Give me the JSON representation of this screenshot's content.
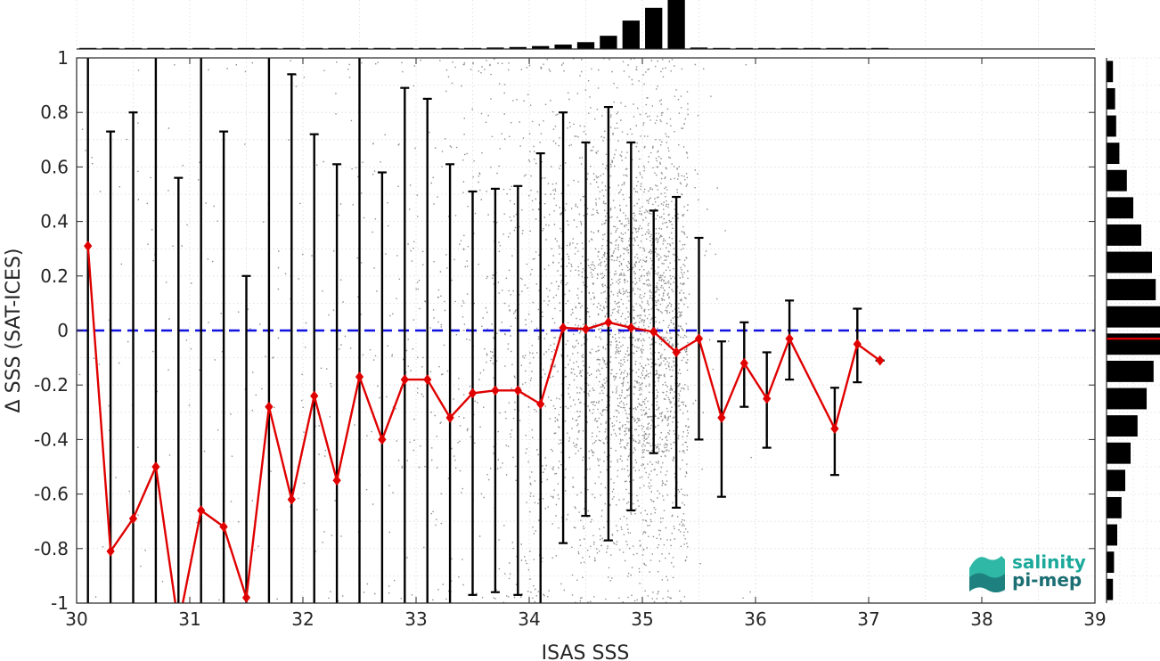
{
  "chart_data": {
    "type": "scatter",
    "xlabel": "ISAS SSS",
    "ylabel": "Δ SSS (SAT-ICES)",
    "xlim": [
      30,
      39
    ],
    "ylim": [
      -1,
      1
    ],
    "xticks": [
      "30",
      "31",
      "32",
      "33",
      "34",
      "35",
      "36",
      "37",
      "38",
      "39"
    ],
    "yticks": [
      "-1",
      "-0.8",
      "-0.6",
      "-0.4",
      "-0.2",
      "0",
      "0.2",
      "0.4",
      "0.6",
      "0.8",
      "1"
    ],
    "grid": true,
    "zero_line": {
      "y": 0,
      "style": "dashed",
      "color": "#1010e0"
    },
    "scatter_color": "#8c8c8c",
    "mean_color": "#e00000",
    "errorbar_color": "#000000",
    "binned_mean": {
      "x": [
        30.1,
        30.3,
        30.5,
        30.7,
        30.9,
        31.1,
        31.3,
        31.5,
        31.7,
        31.9,
        32.1,
        32.3,
        32.5,
        32.7,
        32.9,
        33.1,
        33.3,
        33.5,
        33.7,
        33.9,
        34.1,
        34.3,
        34.5,
        34.7,
        34.9,
        35.1,
        35.3,
        35.5,
        35.7,
        35.9,
        36.1,
        36.3,
        36.7,
        36.9,
        37.1
      ],
      "mean": [
        0.31,
        -0.81,
        -0.69,
        -0.5,
        -1.08,
        -0.66,
        -0.72,
        -0.98,
        -0.28,
        -0.62,
        -0.24,
        -0.55,
        -0.17,
        -0.4,
        -0.18,
        -0.18,
        -0.32,
        -0.23,
        -0.22,
        -0.22,
        -0.27,
        0.01,
        0.005,
        0.03,
        0.01,
        -0.005,
        -0.08,
        -0.03,
        -0.32,
        -0.12,
        -0.25,
        -0.03,
        -0.36,
        -0.05,
        -0.11
      ],
      "upper": [
        1.1,
        0.73,
        0.8,
        1.1,
        0.56,
        1.1,
        0.73,
        0.2,
        1.1,
        0.94,
        0.72,
        0.61,
        1.1,
        0.58,
        0.89,
        0.85,
        0.61,
        0.51,
        0.52,
        0.53,
        0.65,
        0.8,
        0.69,
        0.82,
        0.69,
        0.44,
        0.49,
        0.34,
        -0.04,
        0.03,
        -0.08,
        0.11,
        -0.21,
        0.08,
        -0.11
      ],
      "lower": [
        -1.1,
        -1.1,
        -1.1,
        -1.1,
        -1.1,
        -1.1,
        -1.1,
        -1.1,
        -1.1,
        -1.1,
        -1.1,
        -1.1,
        -1.1,
        -1.1,
        -1.1,
        -1.1,
        -1.1,
        -0.97,
        -0.96,
        -0.97,
        -1.1,
        -0.78,
        -0.68,
        -0.77,
        -0.66,
        -0.45,
        -0.65,
        -0.4,
        -0.61,
        -0.28,
        -0.43,
        -0.18,
        -0.53,
        -0.19,
        -0.11
      ]
    },
    "scatter_density": {
      "x": [
        30.1,
        30.3,
        30.5,
        30.7,
        30.9,
        31.1,
        31.3,
        31.5,
        31.7,
        31.9,
        32.1,
        32.3,
        32.5,
        32.7,
        32.9,
        33.1,
        33.3,
        33.5,
        33.7,
        33.9,
        34.1,
        34.3,
        34.5,
        34.7,
        34.9,
        35.1,
        35.3,
        35.5,
        35.7,
        35.9
      ],
      "points_per_bin": [
        8,
        10,
        12,
        12,
        12,
        14,
        14,
        14,
        16,
        18,
        22,
        26,
        30,
        36,
        44,
        54,
        64,
        80,
        100,
        120,
        160,
        230,
        330,
        450,
        560,
        620,
        500,
        20,
        6,
        4
      ]
    },
    "histogram_top": {
      "x": [
        30.1,
        30.3,
        30.5,
        30.7,
        30.9,
        31.1,
        31.3,
        31.5,
        31.7,
        31.9,
        32.1,
        32.3,
        32.5,
        32.7,
        32.9,
        33.1,
        33.3,
        33.5,
        33.7,
        33.9,
        34.1,
        34.3,
        34.5,
        34.7,
        34.9,
        35.1,
        35.3,
        35.5,
        35.7,
        35.9,
        36.1,
        36.3,
        36.5,
        36.7,
        36.9,
        37.1
      ],
      "counts": [
        0.02,
        0.01,
        0.01,
        0.01,
        0.01,
        0.01,
        0.01,
        0.01,
        0.01,
        0.01,
        0.01,
        0.01,
        0.02,
        0.02,
        0.02,
        0.02,
        0.02,
        0.02,
        0.03,
        0.04,
        0.06,
        0.09,
        0.14,
        0.27,
        0.58,
        0.84,
        1.0,
        0.03,
        0.005,
        0.005,
        0.005,
        0.005,
        0.005,
        0.005,
        0.005,
        0.005
      ]
    },
    "histogram_right": {
      "y": [
        -0.95,
        -0.85,
        -0.75,
        -0.65,
        -0.55,
        -0.45,
        -0.35,
        -0.25,
        -0.15,
        -0.05,
        0.05,
        0.15,
        0.25,
        0.35,
        0.45,
        0.55,
        0.65,
        0.75,
        0.85,
        0.95
      ],
      "counts": [
        0.12,
        0.14,
        0.2,
        0.28,
        0.35,
        0.45,
        0.58,
        0.75,
        0.88,
        1.0,
        1.0,
        0.92,
        0.85,
        0.65,
        0.5,
        0.38,
        0.24,
        0.18,
        0.16,
        0.12
      ],
      "mean_marker": -0.03
    }
  },
  "logo": {
    "line1": "salinity",
    "line2": "pi-mep",
    "color1": "#1aa99a",
    "color2": "#1b6f73"
  }
}
